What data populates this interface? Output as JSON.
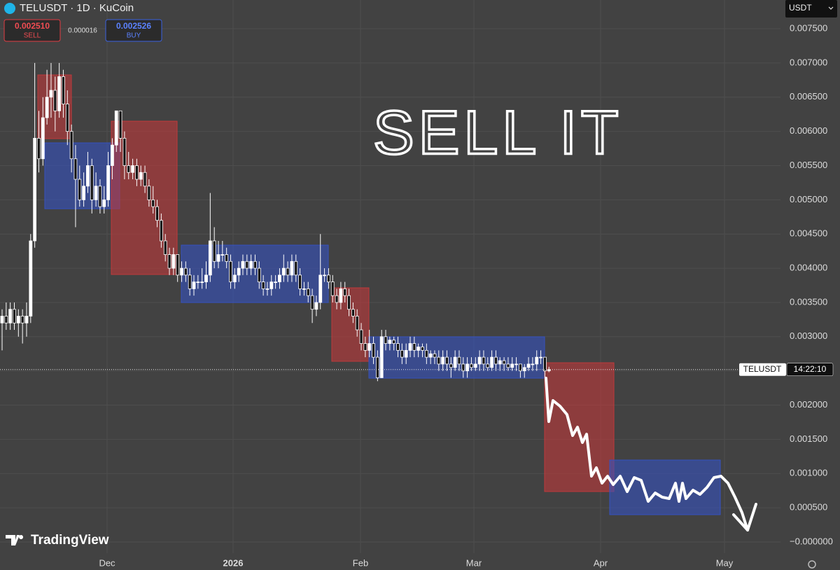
{
  "chart_data": {
    "type": "candlestick",
    "title": "TELUSDT · 1D · KuCoin",
    "sell_price": "0.002510",
    "sell_label": "SELL",
    "spread": "0.000016",
    "buy_price": "0.002526",
    "buy_label": "BUY",
    "currency": "USDT",
    "symbol": "TELUSDT",
    "countdown": "14:22:10",
    "annotation": "SELL IT",
    "brand": "TradingView",
    "ylim": [
      -0.000164,
      0.00792
    ],
    "yticks": [
      {
        "value": 0.0075,
        "label": "0.007500"
      },
      {
        "value": 0.007,
        "label": "0.007000"
      },
      {
        "value": 0.0065,
        "label": "0.006500"
      },
      {
        "value": 0.006,
        "label": "0.006000"
      },
      {
        "value": 0.0055,
        "label": "0.005500"
      },
      {
        "value": 0.005,
        "label": "0.005000"
      },
      {
        "value": 0.0045,
        "label": "0.004500"
      },
      {
        "value": 0.004,
        "label": "0.004000"
      },
      {
        "value": 0.0035,
        "label": "0.003500"
      },
      {
        "value": 0.003,
        "label": "0.003000"
      },
      {
        "value": 0.0025,
        "label": "0.002500"
      },
      {
        "value": 0.002,
        "label": "0.002000"
      },
      {
        "value": 0.0015,
        "label": "0.001500"
      },
      {
        "value": 0.001,
        "label": "0.001000"
      },
      {
        "value": 0.0005,
        "label": "0.000500"
      },
      {
        "value": 0,
        "label": "−0.000000"
      }
    ],
    "xtick_labels": [
      "Dec",
      "2026",
      "Feb",
      "Mar",
      "Apr",
      "May"
    ],
    "grid": true,
    "up_color": "#ffffff",
    "down_color": "#111111",
    "zones": [
      {
        "color": "#c0393b",
        "top": 0.006825,
        "bottom": 0.005894
      },
      {
        "color": "#3552c0",
        "top": 0.005832,
        "bottom": 0.00487
      },
      {
        "color": "#c0393b",
        "top": 0.006149,
        "bottom": 0.003909
      },
      {
        "color": "#3552c0",
        "top": 0.004338,
        "bottom": 0.003499
      },
      {
        "color": "#c0393b",
        "top": 0.003714,
        "bottom": 0.00264
      },
      {
        "color": "#3552c0",
        "top": 0.002998,
        "bottom": 0.002394
      },
      {
        "color": "#c0393b",
        "top": 0.002619,
        "bottom": 0.000737
      },
      {
        "color": "#3552c0",
        "top": 0.001197,
        "bottom": 0.000399
      }
    ],
    "candles": [
      [
        0.0032,
        0.0034,
        0.0028,
        0.0033
      ],
      [
        0.0033,
        0.0035,
        0.0031,
        0.0032
      ],
      [
        0.0032,
        0.0035,
        0.0031,
        0.0034
      ],
      [
        0.0034,
        0.0035,
        0.0031,
        0.0032
      ],
      [
        0.0032,
        0.0034,
        0.003,
        0.0033
      ],
      [
        0.0033,
        0.0034,
        0.0029,
        0.0032
      ],
      [
        0.0032,
        0.0035,
        0.003,
        0.0033
      ],
      [
        0.0033,
        0.0045,
        0.0032,
        0.0044
      ],
      [
        0.0044,
        0.007,
        0.0043,
        0.0059
      ],
      [
        0.0059,
        0.0063,
        0.0054,
        0.0056
      ],
      [
        0.0056,
        0.0065,
        0.0055,
        0.0062
      ],
      [
        0.0062,
        0.0069,
        0.0061,
        0.0065
      ],
      [
        0.0065,
        0.007,
        0.0062,
        0.0066
      ],
      [
        0.0066,
        0.0068,
        0.006,
        0.0063
      ],
      [
        0.0063,
        0.007,
        0.0062,
        0.0068
      ],
      [
        0.0068,
        0.0069,
        0.0062,
        0.0064
      ],
      [
        0.0064,
        0.0066,
        0.0058,
        0.006
      ],
      [
        0.006,
        0.0061,
        0.0054,
        0.0056
      ],
      [
        0.0056,
        0.0058,
        0.0046,
        0.0053
      ],
      [
        0.0053,
        0.0055,
        0.0049,
        0.005
      ],
      [
        0.005,
        0.0054,
        0.0049,
        0.0052
      ],
      [
        0.0052,
        0.0057,
        0.0051,
        0.0055
      ],
      [
        0.0055,
        0.0056,
        0.0048,
        0.005
      ],
      [
        0.005,
        0.0054,
        0.0049,
        0.0052
      ],
      [
        0.0052,
        0.0053,
        0.0048,
        0.0049
      ],
      [
        0.0049,
        0.0052,
        0.0048,
        0.005
      ],
      [
        0.005,
        0.0057,
        0.0049,
        0.0055
      ],
      [
        0.0055,
        0.0059,
        0.0053,
        0.0058
      ],
      [
        0.0058,
        0.0063,
        0.0057,
        0.0063
      ],
      [
        0.0063,
        0.0063,
        0.0057,
        0.0059
      ],
      [
        0.0059,
        0.006,
        0.0053,
        0.0055
      ],
      [
        0.0055,
        0.0057,
        0.0053,
        0.0054
      ],
      [
        0.0054,
        0.0056,
        0.0053,
        0.0055
      ],
      [
        0.0055,
        0.0056,
        0.0052,
        0.0053
      ],
      [
        0.0053,
        0.0055,
        0.0052,
        0.0054
      ],
      [
        0.0054,
        0.0055,
        0.0051,
        0.0052
      ],
      [
        0.0052,
        0.0053,
        0.0049,
        0.005
      ],
      [
        0.005,
        0.0052,
        0.0048,
        0.0049
      ],
      [
        0.0049,
        0.005,
        0.0046,
        0.0047
      ],
      [
        0.0047,
        0.0048,
        0.0043,
        0.0044
      ],
      [
        0.0044,
        0.0045,
        0.0041,
        0.0042
      ],
      [
        0.0042,
        0.0043,
        0.0039,
        0.004
      ],
      [
        0.004,
        0.0043,
        0.0039,
        0.0042
      ],
      [
        0.0042,
        0.0042,
        0.0038,
        0.0039
      ],
      [
        0.0039,
        0.0041,
        0.0038,
        0.004
      ],
      [
        0.004,
        0.0041,
        0.0038,
        0.0039
      ],
      [
        0.0039,
        0.004,
        0.0036,
        0.0037
      ],
      [
        0.0037,
        0.0039,
        0.0036,
        0.0038
      ],
      [
        0.0038,
        0.0039,
        0.0037,
        0.0038
      ],
      [
        0.0038,
        0.004,
        0.0037,
        0.0038
      ],
      [
        0.0038,
        0.0041,
        0.0037,
        0.0039
      ],
      [
        0.0039,
        0.0051,
        0.0038,
        0.0044
      ],
      [
        0.0044,
        0.0046,
        0.004,
        0.0041
      ],
      [
        0.0041,
        0.0044,
        0.004,
        0.0042
      ],
      [
        0.0042,
        0.0044,
        0.0041,
        0.0042
      ],
      [
        0.0042,
        0.0043,
        0.004,
        0.0041
      ],
      [
        0.0041,
        0.0042,
        0.0037,
        0.0038
      ],
      [
        0.0038,
        0.004,
        0.0037,
        0.0039
      ],
      [
        0.0039,
        0.0041,
        0.0038,
        0.004
      ],
      [
        0.004,
        0.0042,
        0.0039,
        0.0041
      ],
      [
        0.0041,
        0.0042,
        0.0039,
        0.004
      ],
      [
        0.004,
        0.0042,
        0.0039,
        0.0041
      ],
      [
        0.0041,
        0.0042,
        0.0039,
        0.004
      ],
      [
        0.004,
        0.0041,
        0.0037,
        0.0038
      ],
      [
        0.0038,
        0.0039,
        0.0036,
        0.0037
      ],
      [
        0.0037,
        0.0038,
        0.0036,
        0.0037
      ],
      [
        0.0037,
        0.0039,
        0.0036,
        0.0038
      ],
      [
        0.0038,
        0.0039,
        0.0037,
        0.0038
      ],
      [
        0.0038,
        0.004,
        0.0037,
        0.0039
      ],
      [
        0.0039,
        0.0042,
        0.0038,
        0.004
      ],
      [
        0.004,
        0.0041,
        0.0038,
        0.0039
      ],
      [
        0.0039,
        0.0042,
        0.0038,
        0.0041
      ],
      [
        0.0041,
        0.0042,
        0.0038,
        0.0039
      ],
      [
        0.0039,
        0.004,
        0.0036,
        0.0037
      ],
      [
        0.0037,
        0.0038,
        0.0036,
        0.0037
      ],
      [
        0.0037,
        0.0038,
        0.0035,
        0.0036
      ],
      [
        0.0036,
        0.0037,
        0.0032,
        0.0034
      ],
      [
        0.0034,
        0.0036,
        0.0033,
        0.0035
      ],
      [
        0.0035,
        0.0045,
        0.0034,
        0.0039
      ],
      [
        0.0039,
        0.004,
        0.0038,
        0.0039
      ],
      [
        0.0039,
        0.004,
        0.0037,
        0.0038
      ],
      [
        0.0038,
        0.0039,
        0.0035,
        0.0036
      ],
      [
        0.0036,
        0.0037,
        0.0034,
        0.0035
      ],
      [
        0.0035,
        0.0038,
        0.0034,
        0.0037
      ],
      [
        0.0037,
        0.0038,
        0.0035,
        0.0036
      ],
      [
        0.0036,
        0.0037,
        0.0033,
        0.0034
      ],
      [
        0.0034,
        0.0035,
        0.0032,
        0.0033
      ],
      [
        0.0033,
        0.0034,
        0.003,
        0.0031
      ],
      [
        0.0031,
        0.0032,
        0.0028,
        0.0029
      ],
      [
        0.0029,
        0.003,
        0.0027,
        0.0028
      ],
      [
        0.0028,
        0.0031,
        0.0027,
        0.0029
      ],
      [
        0.0029,
        0.003,
        0.0026,
        0.0027
      ],
      [
        0.0027,
        0.0028,
        0.00235,
        0.0024
      ],
      [
        0.0024,
        0.0031,
        0.0024,
        0.003
      ],
      [
        0.003,
        0.0031,
        0.0028,
        0.0029
      ],
      [
        0.0029,
        0.003,
        0.0028,
        0.00295
      ],
      [
        0.00295,
        0.003,
        0.0028,
        0.0029
      ],
      [
        0.0029,
        0.003,
        0.0027,
        0.0028
      ],
      [
        0.0028,
        0.0029,
        0.0026,
        0.0027
      ],
      [
        0.0027,
        0.0029,
        0.0026,
        0.0028
      ],
      [
        0.0028,
        0.003,
        0.0027,
        0.0029
      ],
      [
        0.0029,
        0.003,
        0.0027,
        0.0028
      ],
      [
        0.0028,
        0.0029,
        0.0027,
        0.00285
      ],
      [
        0.00285,
        0.0029,
        0.0027,
        0.0028
      ],
      [
        0.0028,
        0.0029,
        0.0026,
        0.0027
      ],
      [
        0.0027,
        0.0028,
        0.0026,
        0.00275
      ],
      [
        0.00275,
        0.0028,
        0.0026,
        0.0027
      ],
      [
        0.0027,
        0.0028,
        0.0025,
        0.0026
      ],
      [
        0.0026,
        0.0028,
        0.0025,
        0.0027
      ],
      [
        0.0027,
        0.0028,
        0.0025,
        0.0026
      ],
      [
        0.0026,
        0.0027,
        0.0024,
        0.00255
      ],
      [
        0.00255,
        0.0028,
        0.0025,
        0.0027
      ],
      [
        0.0027,
        0.0028,
        0.0025,
        0.0026
      ],
      [
        0.0026,
        0.0027,
        0.0024,
        0.0025
      ],
      [
        0.0025,
        0.0027,
        0.0024,
        0.0026
      ],
      [
        0.0026,
        0.0027,
        0.0025,
        0.00255
      ],
      [
        0.00255,
        0.0027,
        0.0025,
        0.0026
      ],
      [
        0.0026,
        0.0028,
        0.0025,
        0.0027
      ],
      [
        0.0027,
        0.0028,
        0.0025,
        0.0026
      ],
      [
        0.0026,
        0.0027,
        0.0025,
        0.00255
      ],
      [
        0.00255,
        0.0028,
        0.0025,
        0.0027
      ],
      [
        0.0027,
        0.0028,
        0.0025,
        0.0026
      ],
      [
        0.0026,
        0.0027,
        0.0025,
        0.00265
      ],
      [
        0.00265,
        0.0027,
        0.0025,
        0.0026
      ],
      [
        0.0026,
        0.0027,
        0.0025,
        0.00255
      ],
      [
        0.00255,
        0.0027,
        0.0025,
        0.0026
      ],
      [
        0.0026,
        0.0027,
        0.0025,
        0.0026
      ],
      [
        0.0026,
        0.0026,
        0.0024,
        0.0025
      ],
      [
        0.0025,
        0.0026,
        0.0024,
        0.00255
      ],
      [
        0.00255,
        0.0027,
        0.0025,
        0.0026
      ],
      [
        0.0026,
        0.0027,
        0.0025,
        0.0026
      ],
      [
        0.0026,
        0.0028,
        0.0025,
        0.0027
      ],
      [
        0.0027,
        0.0028,
        0.0026,
        0.0027
      ],
      [
        0.0027,
        0.0027,
        0.0024,
        0.0025
      ],
      [
        0.0025,
        0.00256,
        0.00248,
        0.00252
      ]
    ]
  }
}
